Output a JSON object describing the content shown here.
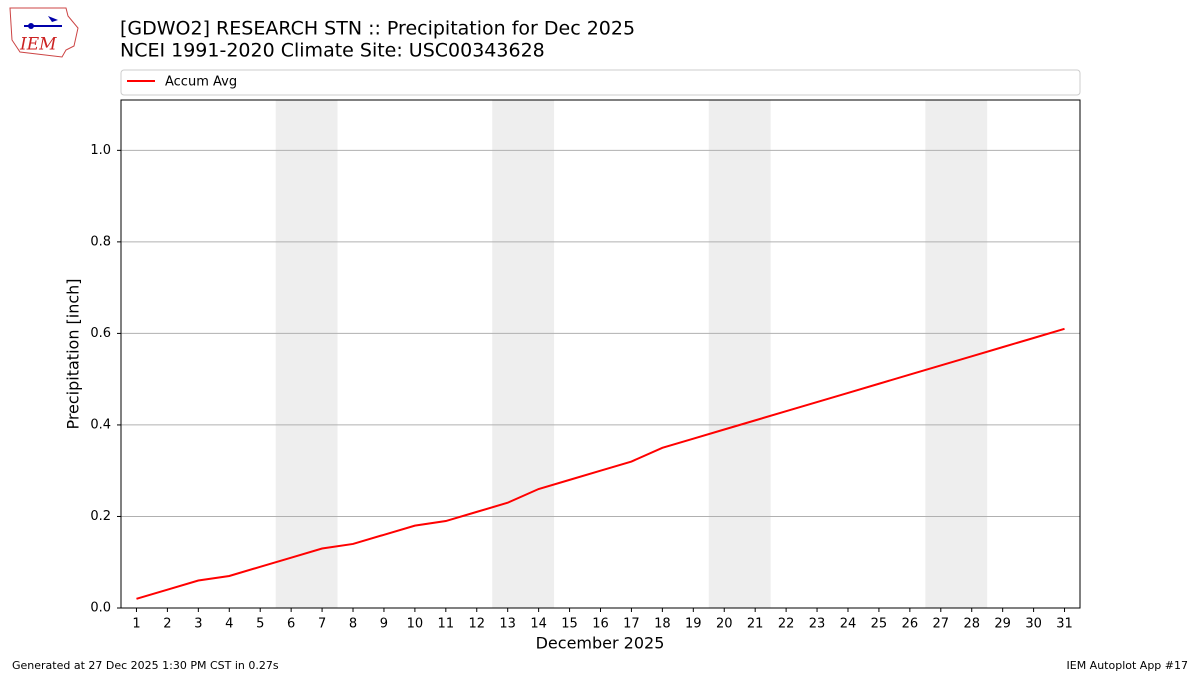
{
  "chart_data": {
    "type": "line",
    "title": "[GDWO2] RESEARCH STN :: Precipitation for Dec 2025",
    "subtitle": "NCEI 1991-2020 Climate Site: USC00343628",
    "logo_text": "IEM",
    "x_label": "December 2025",
    "y_label": "Precipitation [inch]",
    "x": [
      1,
      2,
      3,
      4,
      5,
      6,
      7,
      8,
      9,
      10,
      11,
      12,
      13,
      14,
      15,
      16,
      17,
      18,
      19,
      20,
      21,
      22,
      23,
      24,
      25,
      26,
      27,
      28,
      29,
      30,
      31
    ],
    "series": [
      {
        "name": "Accum Avg",
        "color": "#ff0000",
        "values": [
          0.02,
          0.04,
          0.06,
          0.07,
          0.09,
          0.11,
          0.13,
          0.14,
          0.16,
          0.18,
          0.19,
          0.21,
          0.23,
          0.26,
          0.28,
          0.3,
          0.32,
          0.35,
          0.37,
          0.39,
          0.41,
          0.43,
          0.45,
          0.47,
          0.49,
          0.51,
          0.53,
          0.55,
          0.57,
          0.59,
          0.61
        ]
      }
    ],
    "shaded_spans": [
      [
        5.5,
        7.5
      ],
      [
        12.5,
        14.5
      ],
      [
        19.5,
        21.5
      ],
      [
        26.5,
        28.5
      ]
    ],
    "shade_color": "#eeeeee",
    "xlim": [
      0.5,
      31.5
    ],
    "xticks": [
      1,
      2,
      3,
      4,
      5,
      6,
      7,
      8,
      9,
      10,
      11,
      12,
      13,
      14,
      15,
      16,
      17,
      18,
      19,
      20,
      21,
      22,
      23,
      24,
      25,
      26,
      27,
      28,
      29,
      30,
      31
    ],
    "ylim": [
      0,
      1.11
    ],
    "yticks": [
      {
        "value": 0,
        "label": "0.0"
      },
      0.2,
      0.4,
      0.6,
      0.8,
      {
        "value": 1,
        "label": "1.0"
      }
    ],
    "grid": true,
    "legend": "top",
    "footer_left": "Generated at 27 Dec 2025 1:30 PM CST in 0.27s",
    "footer_right": "IEM Autoplot App #17"
  }
}
